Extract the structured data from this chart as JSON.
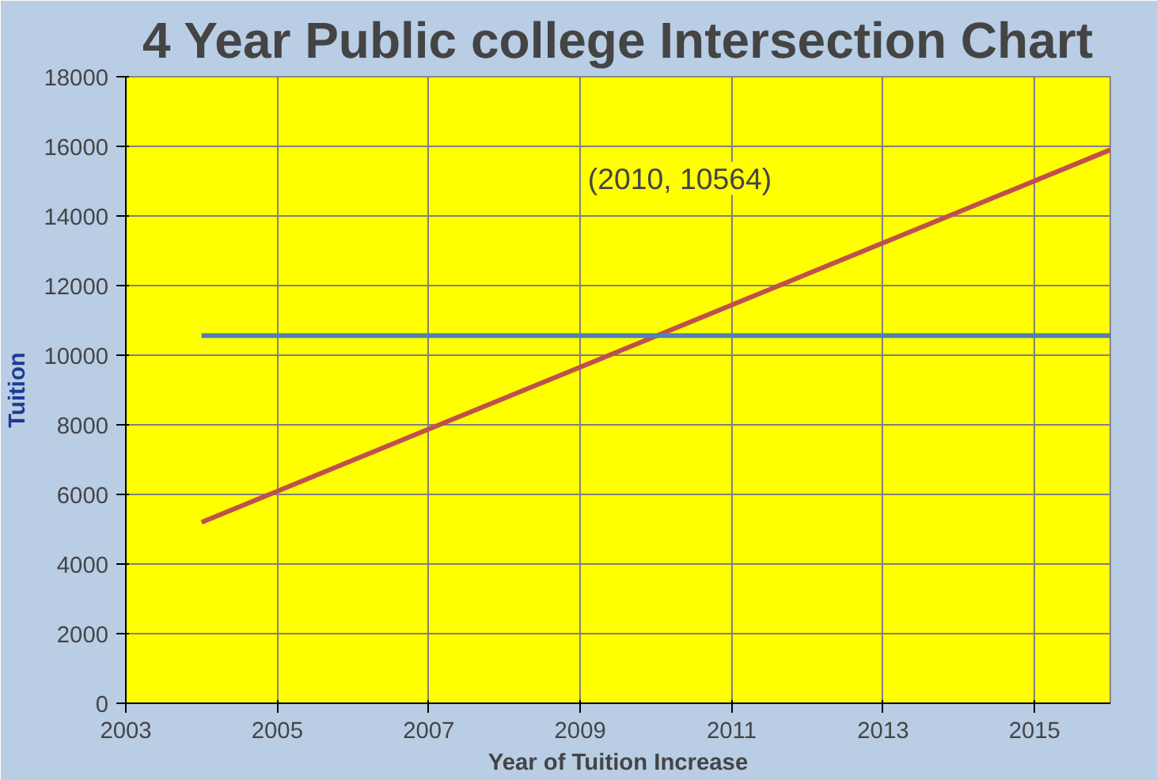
{
  "chart_data": {
    "type": "line",
    "title": "4 Year Public college Intersection Chart",
    "xlabel": "Year of Tuition Increase",
    "ylabel": "Tuition",
    "xlim": [
      2003,
      2016
    ],
    "xticks": [
      2003,
      2005,
      2007,
      2009,
      2011,
      2013,
      2015
    ],
    "ylim": [
      0,
      18000
    ],
    "yticks": [
      0,
      2000,
      4000,
      6000,
      8000,
      10000,
      12000,
      14000,
      16000,
      18000
    ],
    "grid": true,
    "marker": "none",
    "line_style": "solid",
    "x": [
      2004,
      2016
    ],
    "series": [
      {
        "color": "#c0504d",
        "values": [
          5200,
          15900
        ]
      },
      {
        "color": "#4f81bd",
        "values": [
          10564,
          10564
        ]
      }
    ],
    "annotations": [
      "(2010, 10564)"
    ]
  }
}
